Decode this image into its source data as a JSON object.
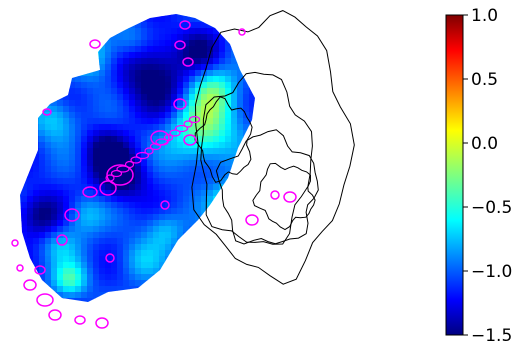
{
  "chart_data": {
    "type": "heatmap",
    "title": "",
    "xlabel": "",
    "ylabel": "",
    "axes_visible": false,
    "colormap": "jet",
    "colorbar": {
      "placement": "right",
      "range": [
        -1.5,
        1.0
      ],
      "ticks": [
        1.0,
        0.5,
        0.0,
        -0.5,
        -1.0,
        -1.5
      ],
      "tick_labels": [
        "1.0",
        "0.5",
        "0.0",
        "−0.5",
        "−1.0",
        "−1.5"
      ]
    },
    "overlays": [
      {
        "kind": "contours",
        "color": "#000000",
        "count": 5
      },
      {
        "kind": "contours",
        "color": "#ff00ff"
      }
    ]
  }
}
